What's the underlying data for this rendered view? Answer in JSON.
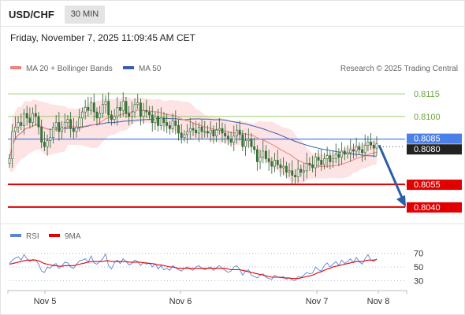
{
  "header": {
    "symbol": "USD/CHF",
    "timeframe": "30 MIN",
    "datetime": "Friday, November 7, 2025 11:09:45 AM CET"
  },
  "legend": {
    "ma20_label": "MA 20 + Bollinger Bands",
    "ma50_label": "MA 50",
    "credit": "Research © 2025 Trading Central",
    "rsi_label": "RSI",
    "rsi_ma_label": "9MA"
  },
  "colors": {
    "ma20": "#f08080",
    "bollinger_fill": "#fde0e0",
    "ma50": "#3a5db0",
    "resistance": "#9ccc65",
    "pivot": "#4a80e8",
    "support": "#e00000",
    "current": "#222222",
    "arrow": "#2a5ea8",
    "rsi": "#5b83d8",
    "rsi_ma": "#e00000",
    "candle_up": "#2e7d32",
    "candle_down": "#2e7d32"
  },
  "chart_data": [
    {
      "type": "candlestick",
      "title": "USD/CHF",
      "x_labels": [
        "Nov 5",
        "Nov 6",
        "Nov 7",
        "Nov 8"
      ],
      "ylim": [
        0.803,
        0.8125
      ],
      "levels": [
        {
          "label": "0.8115",
          "value": 0.8115,
          "kind": "resistance"
        },
        {
          "label": "0.8100",
          "value": 0.81,
          "kind": "resistance"
        },
        {
          "label": "0.8085",
          "value": 0.8085,
          "kind": "pivot"
        },
        {
          "label": "0.8080",
          "value": 0.808,
          "kind": "current"
        },
        {
          "label": "0.8055",
          "value": 0.8055,
          "kind": "support"
        },
        {
          "label": "0.8040",
          "value": 0.804,
          "kind": "support"
        }
      ],
      "close_series": [
        0.8072,
        0.809,
        0.8093,
        0.8096,
        0.8094,
        0.8102,
        0.8099,
        0.8096,
        0.8102,
        0.81,
        0.8093,
        0.8083,
        0.808,
        0.8084,
        0.8086,
        0.8093,
        0.8096,
        0.809,
        0.8093,
        0.8096,
        0.8098,
        0.8092,
        0.809,
        0.8093,
        0.8099,
        0.8103,
        0.8106,
        0.8104,
        0.8109,
        0.8103,
        0.8099,
        0.8102,
        0.8108,
        0.811,
        0.8101,
        0.8098,
        0.81,
        0.8106,
        0.8104,
        0.811,
        0.8102,
        0.81,
        0.8103,
        0.8108,
        0.8109,
        0.81,
        0.8104,
        0.8103,
        0.8101,
        0.8096,
        0.81,
        0.8094,
        0.8099,
        0.8096,
        0.8094,
        0.8092,
        0.8097,
        0.8094,
        0.8089,
        0.8086,
        0.8088,
        0.809,
        0.8092,
        0.8091,
        0.8089,
        0.8093,
        0.809,
        0.809,
        0.8089,
        0.8091,
        0.8087,
        0.8091,
        0.8092,
        0.8089,
        0.8087,
        0.8085,
        0.8083,
        0.8087,
        0.8091,
        0.8088,
        0.808,
        0.8084,
        0.8085,
        0.808,
        0.8078,
        0.807,
        0.8073,
        0.8077,
        0.8072,
        0.807,
        0.8067,
        0.8071,
        0.8068,
        0.8066,
        0.8067,
        0.8063,
        0.8064,
        0.8061,
        0.806,
        0.8065,
        0.8063,
        0.8064,
        0.8069,
        0.8068,
        0.8066,
        0.8073,
        0.8071,
        0.8068,
        0.8072,
        0.8074,
        0.807,
        0.8072,
        0.8075,
        0.8073,
        0.8077,
        0.8075,
        0.8076,
        0.8078,
        0.8077,
        0.808,
        0.8078,
        0.8076,
        0.8081,
        0.8083,
        0.8081,
        0.8079,
        0.8082
      ],
      "forecast_path": [
        0.8081,
        0.804
      ]
    },
    {
      "type": "line",
      "title": "RSI",
      "x_labels": [
        "Nov 5",
        "Nov 6",
        "Nov 7",
        "Nov 8"
      ],
      "ylim": [
        20,
        80
      ],
      "y_ticks": [
        "70",
        "50",
        "30"
      ],
      "series": [
        {
          "name": "RSI",
          "values": [
            55,
            60,
            63,
            65,
            60,
            68,
            62,
            58,
            61,
            60,
            54,
            44,
            42,
            50,
            48,
            53,
            55,
            48,
            52,
            57,
            56,
            50,
            48,
            54,
            59,
            60,
            62,
            57,
            66,
            56,
            54,
            58,
            62,
            69,
            52,
            47,
            56,
            60,
            55,
            62,
            58,
            53,
            55,
            60,
            58,
            52,
            57,
            54,
            56,
            50,
            55,
            47,
            52,
            46,
            48,
            45,
            52,
            49,
            46,
            44,
            48,
            50,
            47,
            45,
            50,
            52,
            48,
            46,
            48,
            50,
            45,
            49,
            52,
            48,
            45,
            42,
            44,
            50,
            52,
            46,
            38,
            44,
            46,
            38,
            36,
            34,
            38,
            40,
            35,
            33,
            32,
            38,
            35,
            34,
            36,
            32,
            34,
            31,
            30,
            36,
            35,
            38,
            42,
            40,
            41,
            50,
            46,
            44,
            52,
            56,
            50,
            54,
            58,
            52,
            60,
            55,
            58,
            62,
            56,
            64,
            58,
            54,
            62,
            68,
            60,
            58,
            62
          ]
        },
        {
          "name": "9MA",
          "values": [
            54,
            55,
            56,
            57,
            58,
            59,
            60,
            60,
            60,
            60,
            59,
            57,
            55,
            54,
            53,
            52,
            52,
            51,
            51,
            52,
            52,
            52,
            52,
            53,
            54,
            55,
            56,
            57,
            58,
            58,
            58,
            58,
            58,
            59,
            59,
            58,
            58,
            58,
            58,
            58,
            58,
            57,
            57,
            57,
            57,
            57,
            56,
            56,
            55,
            55,
            54,
            53,
            53,
            52,
            51,
            50,
            50,
            49,
            48,
            48,
            48,
            48,
            48,
            48,
            48,
            48,
            48,
            48,
            48,
            48,
            48,
            48,
            48,
            48,
            48,
            47,
            46,
            46,
            46,
            46,
            45,
            44,
            43,
            42,
            41,
            40,
            39,
            38,
            37,
            36,
            35,
            35,
            35,
            35,
            34,
            34,
            34,
            33,
            33,
            33,
            34,
            35,
            36,
            37,
            38,
            40,
            42,
            43,
            45,
            47,
            48,
            50,
            51,
            52,
            53,
            54,
            55,
            56,
            57,
            58,
            58,
            58,
            59,
            60,
            60,
            60,
            61
          ]
        }
      ]
    }
  ]
}
